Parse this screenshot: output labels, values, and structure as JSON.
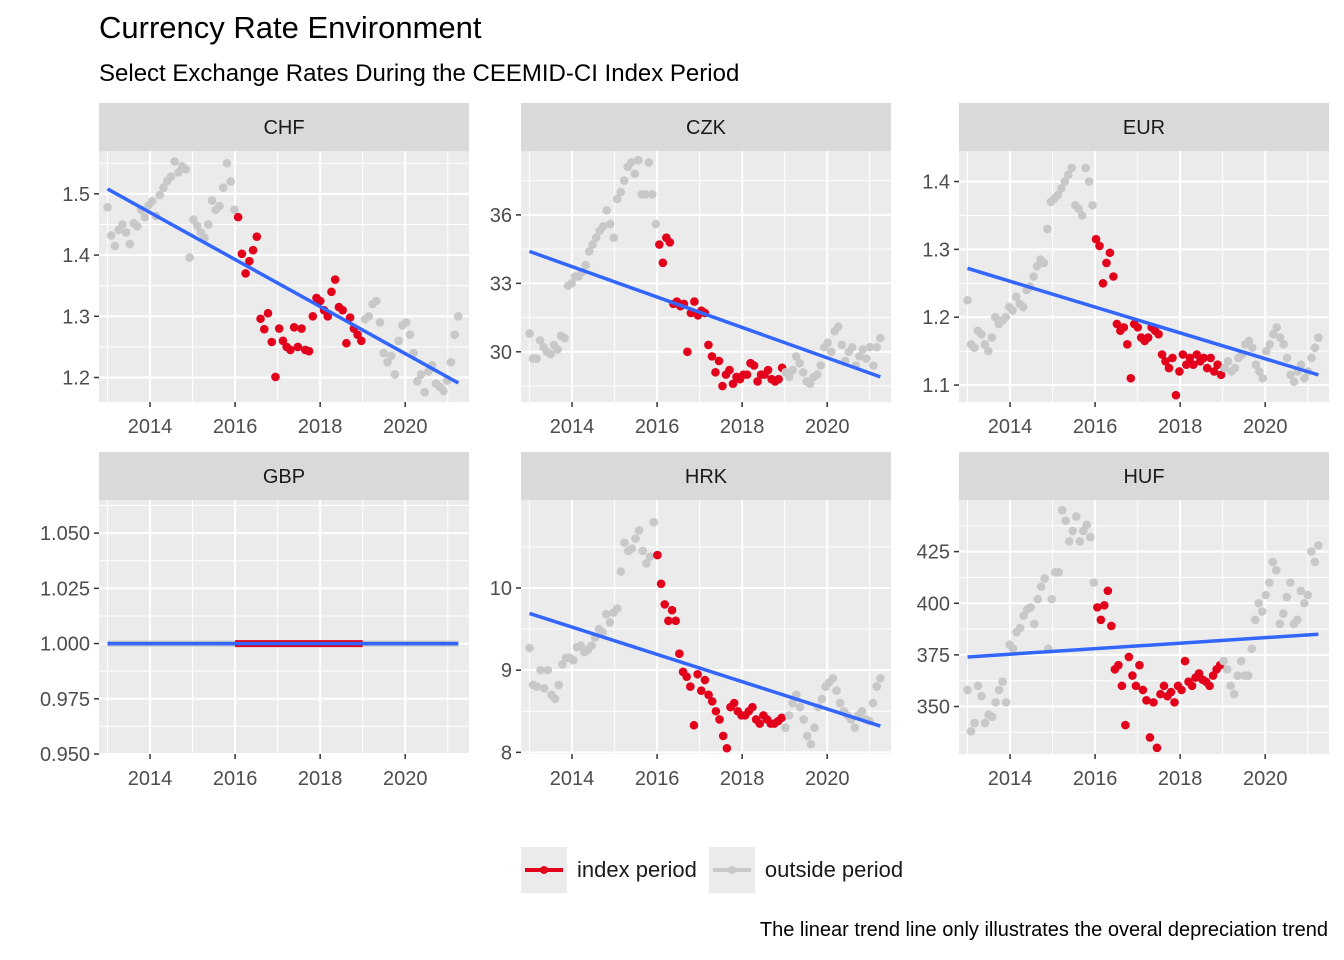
{
  "title": "Currency Rate Environment",
  "subtitle": "Select Exchange Rates During the CEEMID-CI Index Period",
  "caption": "The linear trend line only illustrates the overal depreciation trend",
  "colors": {
    "index": "#e3001b",
    "outside": "#c8c8c8",
    "trend": "#3366ff",
    "panel_bg": "#ebebeb",
    "strip_bg": "#d9d9d9",
    "grid": "#ffffff"
  },
  "legend": [
    {
      "label": "index period",
      "color": "#e3001b"
    },
    {
      "label": "outside period",
      "color": "#c8c8c8"
    }
  ],
  "chart_data": {
    "type": "scatter",
    "facets": "currency",
    "x_axis": {
      "lim": [
        2012.8,
        2021.5
      ],
      "breaks": [
        2014,
        2016,
        2018,
        2020
      ]
    },
    "index_period": [
      2016.0,
      2019.0
    ],
    "panels": [
      {
        "name": "CHF",
        "ylim": [
          1.16,
          1.57
        ],
        "breaks": [
          1.2,
          1.3,
          1.4,
          1.5
        ],
        "tick_labels": [
          "1.2",
          "1.3",
          "1.4",
          "1.5"
        ],
        "trend": [
          1.508,
          1.191
        ],
        "series": [
          1.478,
          1.432,
          1.415,
          1.441,
          1.45,
          1.437,
          1.418,
          1.452,
          1.447,
          1.474,
          1.462,
          1.481,
          1.488,
          1.464,
          1.498,
          1.51,
          1.521,
          1.528,
          1.553,
          1.535,
          1.545,
          1.54,
          1.396,
          1.458,
          1.448,
          1.437,
          1.428,
          1.45,
          1.489,
          1.474,
          1.48,
          1.51,
          1.55,
          1.52,
          1.474,
          1.462,
          1.402,
          1.37,
          1.39,
          1.408,
          1.43,
          1.296,
          1.279,
          1.305,
          1.258,
          1.201,
          1.28,
          1.26,
          1.25,
          1.245,
          1.282,
          1.25,
          1.28,
          1.245,
          1.243,
          1.3,
          1.33,
          1.325,
          1.31,
          1.3,
          1.34,
          1.36,
          1.315,
          1.31,
          1.256,
          1.298,
          1.28,
          1.27,
          1.26,
          1.295,
          1.3,
          1.32,
          1.325,
          1.29,
          1.24,
          1.225,
          1.235,
          1.205,
          1.26,
          1.285,
          1.29,
          1.27,
          1.24,
          1.194,
          1.205,
          1.176,
          1.21,
          1.22,
          1.19,
          1.185,
          1.178,
          1.195,
          1.225,
          1.27,
          1.3
        ]
      },
      {
        "name": "CZK",
        "ylim": [
          27.8,
          38.8
        ],
        "breaks": [
          30,
          33,
          36
        ],
        "tick_labels": [
          "30",
          "33",
          "36"
        ],
        "trend": [
          34.4,
          28.9
        ],
        "series": [
          30.8,
          29.7,
          29.7,
          30.5,
          30.2,
          30.0,
          29.9,
          30.3,
          30.1,
          30.7,
          30.6,
          32.9,
          33.0,
          33.3,
          33.3,
          33.5,
          33.8,
          34.4,
          34.7,
          35.0,
          35.3,
          35.5,
          36.2,
          35.6,
          35.0,
          36.7,
          37.0,
          37.5,
          38.1,
          38.3,
          37.8,
          38.4,
          36.9,
          36.9,
          38.3,
          36.9,
          35.6,
          34.7,
          33.9,
          35.0,
          34.8,
          32.1,
          32.2,
          32.0,
          32.1,
          30.0,
          31.7,
          32.2,
          31.6,
          31.8,
          31.7,
          30.3,
          29.8,
          29.1,
          29.6,
          28.5,
          29.0,
          29.2,
          28.6,
          28.9,
          28.8,
          29.0,
          29.0,
          29.5,
          29.4,
          28.7,
          29.0,
          29.0,
          29.2,
          28.8,
          28.7,
          28.8,
          29.3,
          29.1,
          28.9,
          29.2,
          29.8,
          29.5,
          29.1,
          28.7,
          28.6,
          28.9,
          29.0,
          29.4,
          30.2,
          30.4,
          30.0,
          30.9,
          31.1,
          30.3,
          29.6,
          30.0,
          30.2,
          29.4,
          29.8,
          30.1,
          29.7,
          30.2,
          29.4,
          30.2,
          30.6
        ]
      },
      {
        "name": "EUR",
        "ylim": [
          1.075,
          1.445
        ],
        "breaks": [
          1.1,
          1.2,
          1.3,
          1.4
        ],
        "tick_labels": [
          "1.1",
          "1.2",
          "1.3",
          "1.4"
        ],
        "trend": [
          1.272,
          1.115
        ],
        "series": [
          1.225,
          1.16,
          1.155,
          1.18,
          1.175,
          1.16,
          1.15,
          1.17,
          1.2,
          1.19,
          1.195,
          1.2,
          1.215,
          1.21,
          1.23,
          1.22,
          1.215,
          1.24,
          1.245,
          1.26,
          1.275,
          1.285,
          1.28,
          1.33,
          1.37,
          1.375,
          1.38,
          1.39,
          1.4,
          1.41,
          1.42,
          1.365,
          1.36,
          1.35,
          1.42,
          1.4,
          1.365,
          1.315,
          1.305,
          1.25,
          1.28,
          1.295,
          1.26,
          1.19,
          1.18,
          1.185,
          1.16,
          1.11,
          1.19,
          1.185,
          1.17,
          1.165,
          1.17,
          1.185,
          1.18,
          1.175,
          1.145,
          1.135,
          1.125,
          1.14,
          1.085,
          1.12,
          1.145,
          1.13,
          1.14,
          1.13,
          1.145,
          1.135,
          1.14,
          1.125,
          1.14,
          1.12,
          1.13,
          1.115,
          1.125,
          1.135,
          1.12,
          1.125,
          1.14,
          1.145,
          1.16,
          1.165,
          1.155,
          1.13,
          1.12,
          1.11,
          1.15,
          1.16,
          1.175,
          1.185,
          1.17,
          1.16,
          1.14,
          1.115,
          1.105,
          1.12,
          1.13,
          1.11,
          1.12,
          1.14,
          1.155,
          1.17
        ]
      },
      {
        "name": "GBP",
        "ylim": [
          0.95,
          1.065
        ],
        "breaks": [
          0.95,
          0.975,
          1.0,
          1.025,
          1.05
        ],
        "tick_labels": [
          "0.950",
          "0.975",
          "1.000",
          "1.025",
          "1.050"
        ],
        "trend": [
          1.0,
          1.0
        ],
        "constant": 1.0
      },
      {
        "name": "HRK",
        "ylim": [
          7.98,
          11.07
        ],
        "breaks": [
          8,
          9,
          10
        ],
        "tick_labels": [
          "8",
          "9",
          "10"
        ],
        "trend": [
          9.69,
          8.32
        ],
        "series": [
          9.27,
          8.82,
          8.8,
          9.0,
          8.78,
          9.0,
          8.7,
          8.65,
          8.82,
          9.07,
          9.15,
          9.15,
          9.12,
          9.28,
          9.3,
          9.22,
          9.25,
          9.3,
          9.4,
          9.5,
          9.46,
          9.68,
          9.58,
          9.7,
          9.75,
          10.2,
          10.55,
          10.45,
          10.48,
          10.6,
          10.7,
          10.45,
          10.3,
          10.38,
          10.8,
          10.4,
          10.05,
          9.8,
          9.6,
          9.73,
          9.6,
          9.2,
          8.98,
          8.92,
          8.8,
          8.33,
          8.95,
          8.75,
          8.88,
          8.7,
          8.62,
          8.5,
          8.4,
          8.2,
          8.05,
          8.55,
          8.6,
          8.5,
          8.45,
          8.45,
          8.5,
          8.55,
          8.4,
          8.35,
          8.45,
          8.4,
          8.35,
          8.35,
          8.38,
          8.42,
          8.3,
          8.45,
          8.6,
          8.7,
          8.55,
          8.4,
          8.2,
          8.1,
          8.3,
          8.55,
          8.65,
          8.8,
          8.85,
          8.9,
          8.75,
          8.6,
          8.5,
          8.45,
          8.4,
          8.3,
          8.45,
          8.5,
          8.4,
          8.38,
          8.6,
          8.8,
          8.9
        ]
      },
      {
        "name": "HUF",
        "ylim": [
          327,
          450
        ],
        "breaks": [
          350,
          375,
          400,
          425
        ],
        "tick_labels": [
          "350",
          "375",
          "400",
          "425"
        ],
        "trend": [
          374,
          385
        ],
        "series": [
          358,
          338,
          342,
          360,
          355,
          342,
          346,
          345,
          352,
          358,
          362,
          352,
          380,
          378,
          386,
          388,
          394,
          397,
          398,
          390,
          402,
          408,
          412,
          378,
          402,
          415,
          415,
          445,
          440,
          430,
          435,
          442,
          430,
          435,
          438,
          432,
          410,
          398,
          392,
          399,
          406,
          389,
          368,
          370,
          360,
          341,
          374,
          365,
          360,
          370,
          358,
          353,
          335,
          352,
          330,
          356,
          360,
          355,
          357,
          352,
          360,
          358,
          372,
          362,
          360,
          364,
          366,
          363,
          362,
          360,
          365,
          368,
          370,
          372,
          368,
          360,
          356,
          365,
          372,
          365,
          365,
          378,
          392,
          400,
          396,
          404,
          410,
          420,
          416,
          390,
          395,
          403,
          410,
          390,
          392,
          406,
          400,
          404,
          425,
          420,
          428
        ]
      }
    ]
  }
}
